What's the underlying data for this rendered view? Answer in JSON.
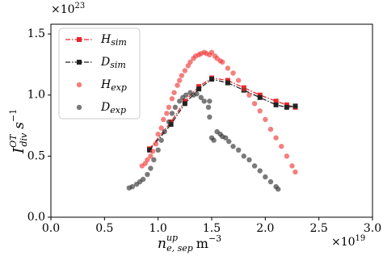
{
  "chart_data": {
    "type": "scatter",
    "y_label": {
      "base": "I",
      "sup": "OT",
      "sub": "div",
      "unit": "s",
      "unit_sup": "−1"
    },
    "x_label": {
      "base": "n",
      "sup": "up",
      "sub": "e, sep",
      "unit": "m",
      "unit_sup": "−3"
    },
    "x_multiplier": {
      "base": "×10",
      "exp": "19"
    },
    "y_multiplier": {
      "base": "×10",
      "exp": "23"
    },
    "xlim": [
      0,
      3.0
    ],
    "ylim": [
      0,
      1.58
    ],
    "xticks": [
      {
        "value": 0,
        "label": "0.0"
      },
      0.5,
      {
        "value": 1,
        "label": "1.0"
      },
      1.5,
      {
        "value": 2,
        "label": "2.0"
      },
      2.5,
      {
        "value": 3,
        "label": "3.0"
      }
    ],
    "yticks": [
      {
        "value": 0,
        "label": "0.0"
      },
      0.5,
      {
        "value": 1,
        "label": "1.0"
      },
      1.5
    ],
    "legend": "upper left",
    "series": [
      {
        "name": "H",
        "subscript": "sim",
        "type": "line",
        "color": "#e8262a",
        "x": [
          0.92,
          1.12,
          1.25,
          1.38,
          1.5,
          1.65,
          1.8,
          1.95,
          2.1,
          2.2,
          2.28
        ],
        "values": [
          0.56,
          0.78,
          0.95,
          1.07,
          1.14,
          1.12,
          1.06,
          1.0,
          0.95,
          0.92,
          0.9
        ]
      },
      {
        "name": "D",
        "subscript": "sim",
        "type": "line",
        "color": "#222222",
        "x": [
          0.92,
          1.12,
          1.25,
          1.38,
          1.5,
          1.65,
          1.8,
          1.95,
          2.1,
          2.2,
          2.28
        ],
        "values": [
          0.55,
          0.76,
          0.93,
          1.05,
          1.13,
          1.1,
          1.04,
          0.98,
          0.92,
          0.9,
          0.91
        ]
      },
      {
        "name": "H",
        "subscript": "exp",
        "type": "scatter",
        "color": "#f03b3b",
        "x": [
          0.85,
          0.88,
          0.9,
          0.93,
          0.95,
          0.98,
          1.0,
          1.03,
          1.05,
          1.08,
          1.1,
          1.13,
          1.15,
          1.18,
          1.2,
          1.22,
          1.25,
          1.28,
          1.3,
          1.33,
          1.35,
          1.38,
          1.4,
          1.43,
          1.45,
          1.48,
          1.5,
          1.53,
          1.55,
          1.58,
          1.6,
          1.65,
          1.7,
          1.75,
          1.8,
          1.85,
          1.9,
          1.95,
          2.0,
          2.05,
          2.1,
          2.15,
          2.2,
          2.25,
          2.28
        ],
        "values": [
          0.42,
          0.44,
          0.47,
          0.5,
          0.54,
          0.6,
          0.68,
          0.73,
          0.8,
          0.85,
          0.9,
          0.97,
          1.02,
          1.08,
          1.12,
          1.16,
          1.2,
          1.24,
          1.27,
          1.3,
          1.32,
          1.33,
          1.34,
          1.35,
          1.34,
          1.33,
          1.35,
          1.32,
          1.3,
          1.28,
          1.27,
          1.22,
          1.18,
          1.12,
          1.05,
          1.0,
          0.93,
          0.87,
          0.8,
          0.72,
          0.65,
          0.58,
          0.5,
          0.42,
          0.37
        ]
      },
      {
        "name": "D",
        "subscript": "exp",
        "type": "scatter",
        "color": "#333333",
        "x": [
          0.73,
          0.76,
          0.8,
          0.83,
          0.86,
          0.9,
          0.93,
          0.96,
          1.0,
          1.03,
          1.06,
          1.1,
          1.13,
          1.16,
          1.2,
          1.23,
          1.26,
          1.3,
          1.33,
          1.36,
          1.4,
          1.43,
          1.47,
          1.48,
          1.48,
          1.5,
          1.52,
          1.55,
          1.58,
          1.6,
          1.63,
          1.66,
          1.7,
          1.75,
          1.8,
          1.85,
          1.9,
          1.95,
          2.0,
          2.05,
          2.1,
          2.12
        ],
        "values": [
          0.24,
          0.25,
          0.27,
          0.29,
          0.31,
          0.35,
          0.4,
          0.47,
          0.55,
          0.63,
          0.7,
          0.78,
          0.85,
          0.9,
          0.95,
          0.98,
          1.0,
          1.02,
          1.0,
          1.01,
          0.98,
          0.95,
          0.9,
          0.82,
          0.95,
          0.65,
          0.63,
          0.7,
          0.68,
          0.66,
          0.65,
          0.62,
          0.58,
          0.55,
          0.5,
          0.47,
          0.42,
          0.38,
          0.33,
          0.29,
          0.25,
          0.23
        ]
      }
    ]
  }
}
